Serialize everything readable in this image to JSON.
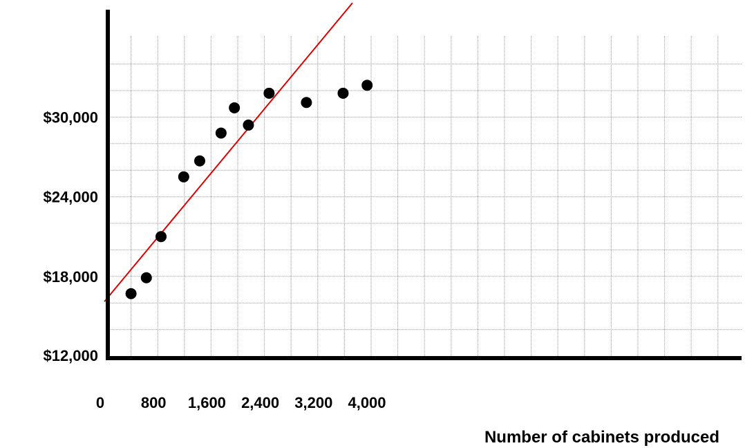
{
  "chart_data": {
    "type": "scatter",
    "title": "",
    "xlabel": "Number of cabinets produced",
    "ylabel": "",
    "xlim": [
      0,
      4800
    ],
    "ylim": [
      12000,
      36000
    ],
    "grid": true,
    "x_ticks": [
      {
        "value": 0,
        "label": "0"
      },
      {
        "value": 800,
        "label": "800"
      },
      {
        "value": 1600,
        "label": "1,600"
      },
      {
        "value": 2400,
        "label": "2,400"
      },
      {
        "value": 3200,
        "label": "3,200"
      },
      {
        "value": 4000,
        "label": "4,000"
      }
    ],
    "y_ticks": [
      {
        "value": 12000,
        "label": "$12,000"
      },
      {
        "value": 18000,
        "label": "$18,000"
      },
      {
        "value": 24000,
        "label": "$24,000"
      },
      {
        "value": 30000,
        "label": "$30,000"
      }
    ],
    "points": [
      {
        "x": 400,
        "y": 16700
      },
      {
        "x": 630,
        "y": 17900
      },
      {
        "x": 850,
        "y": 21000
      },
      {
        "x": 1190,
        "y": 25500
      },
      {
        "x": 1430,
        "y": 26700
      },
      {
        "x": 1750,
        "y": 28800
      },
      {
        "x": 1950,
        "y": 30700
      },
      {
        "x": 2160,
        "y": 29400
      },
      {
        "x": 2470,
        "y": 31800
      },
      {
        "x": 3030,
        "y": 31100
      },
      {
        "x": 3580,
        "y": 31800
      },
      {
        "x": 3940,
        "y": 32400
      }
    ],
    "trend_line": {
      "color": "#e00000",
      "start": {
        "x": 0,
        "y": 16100
      },
      "end": {
        "x": 3720,
        "y": 38600
      }
    },
    "colors": {
      "points": "#000000",
      "axes": "#000000",
      "grid": "#9a9a9a"
    }
  }
}
